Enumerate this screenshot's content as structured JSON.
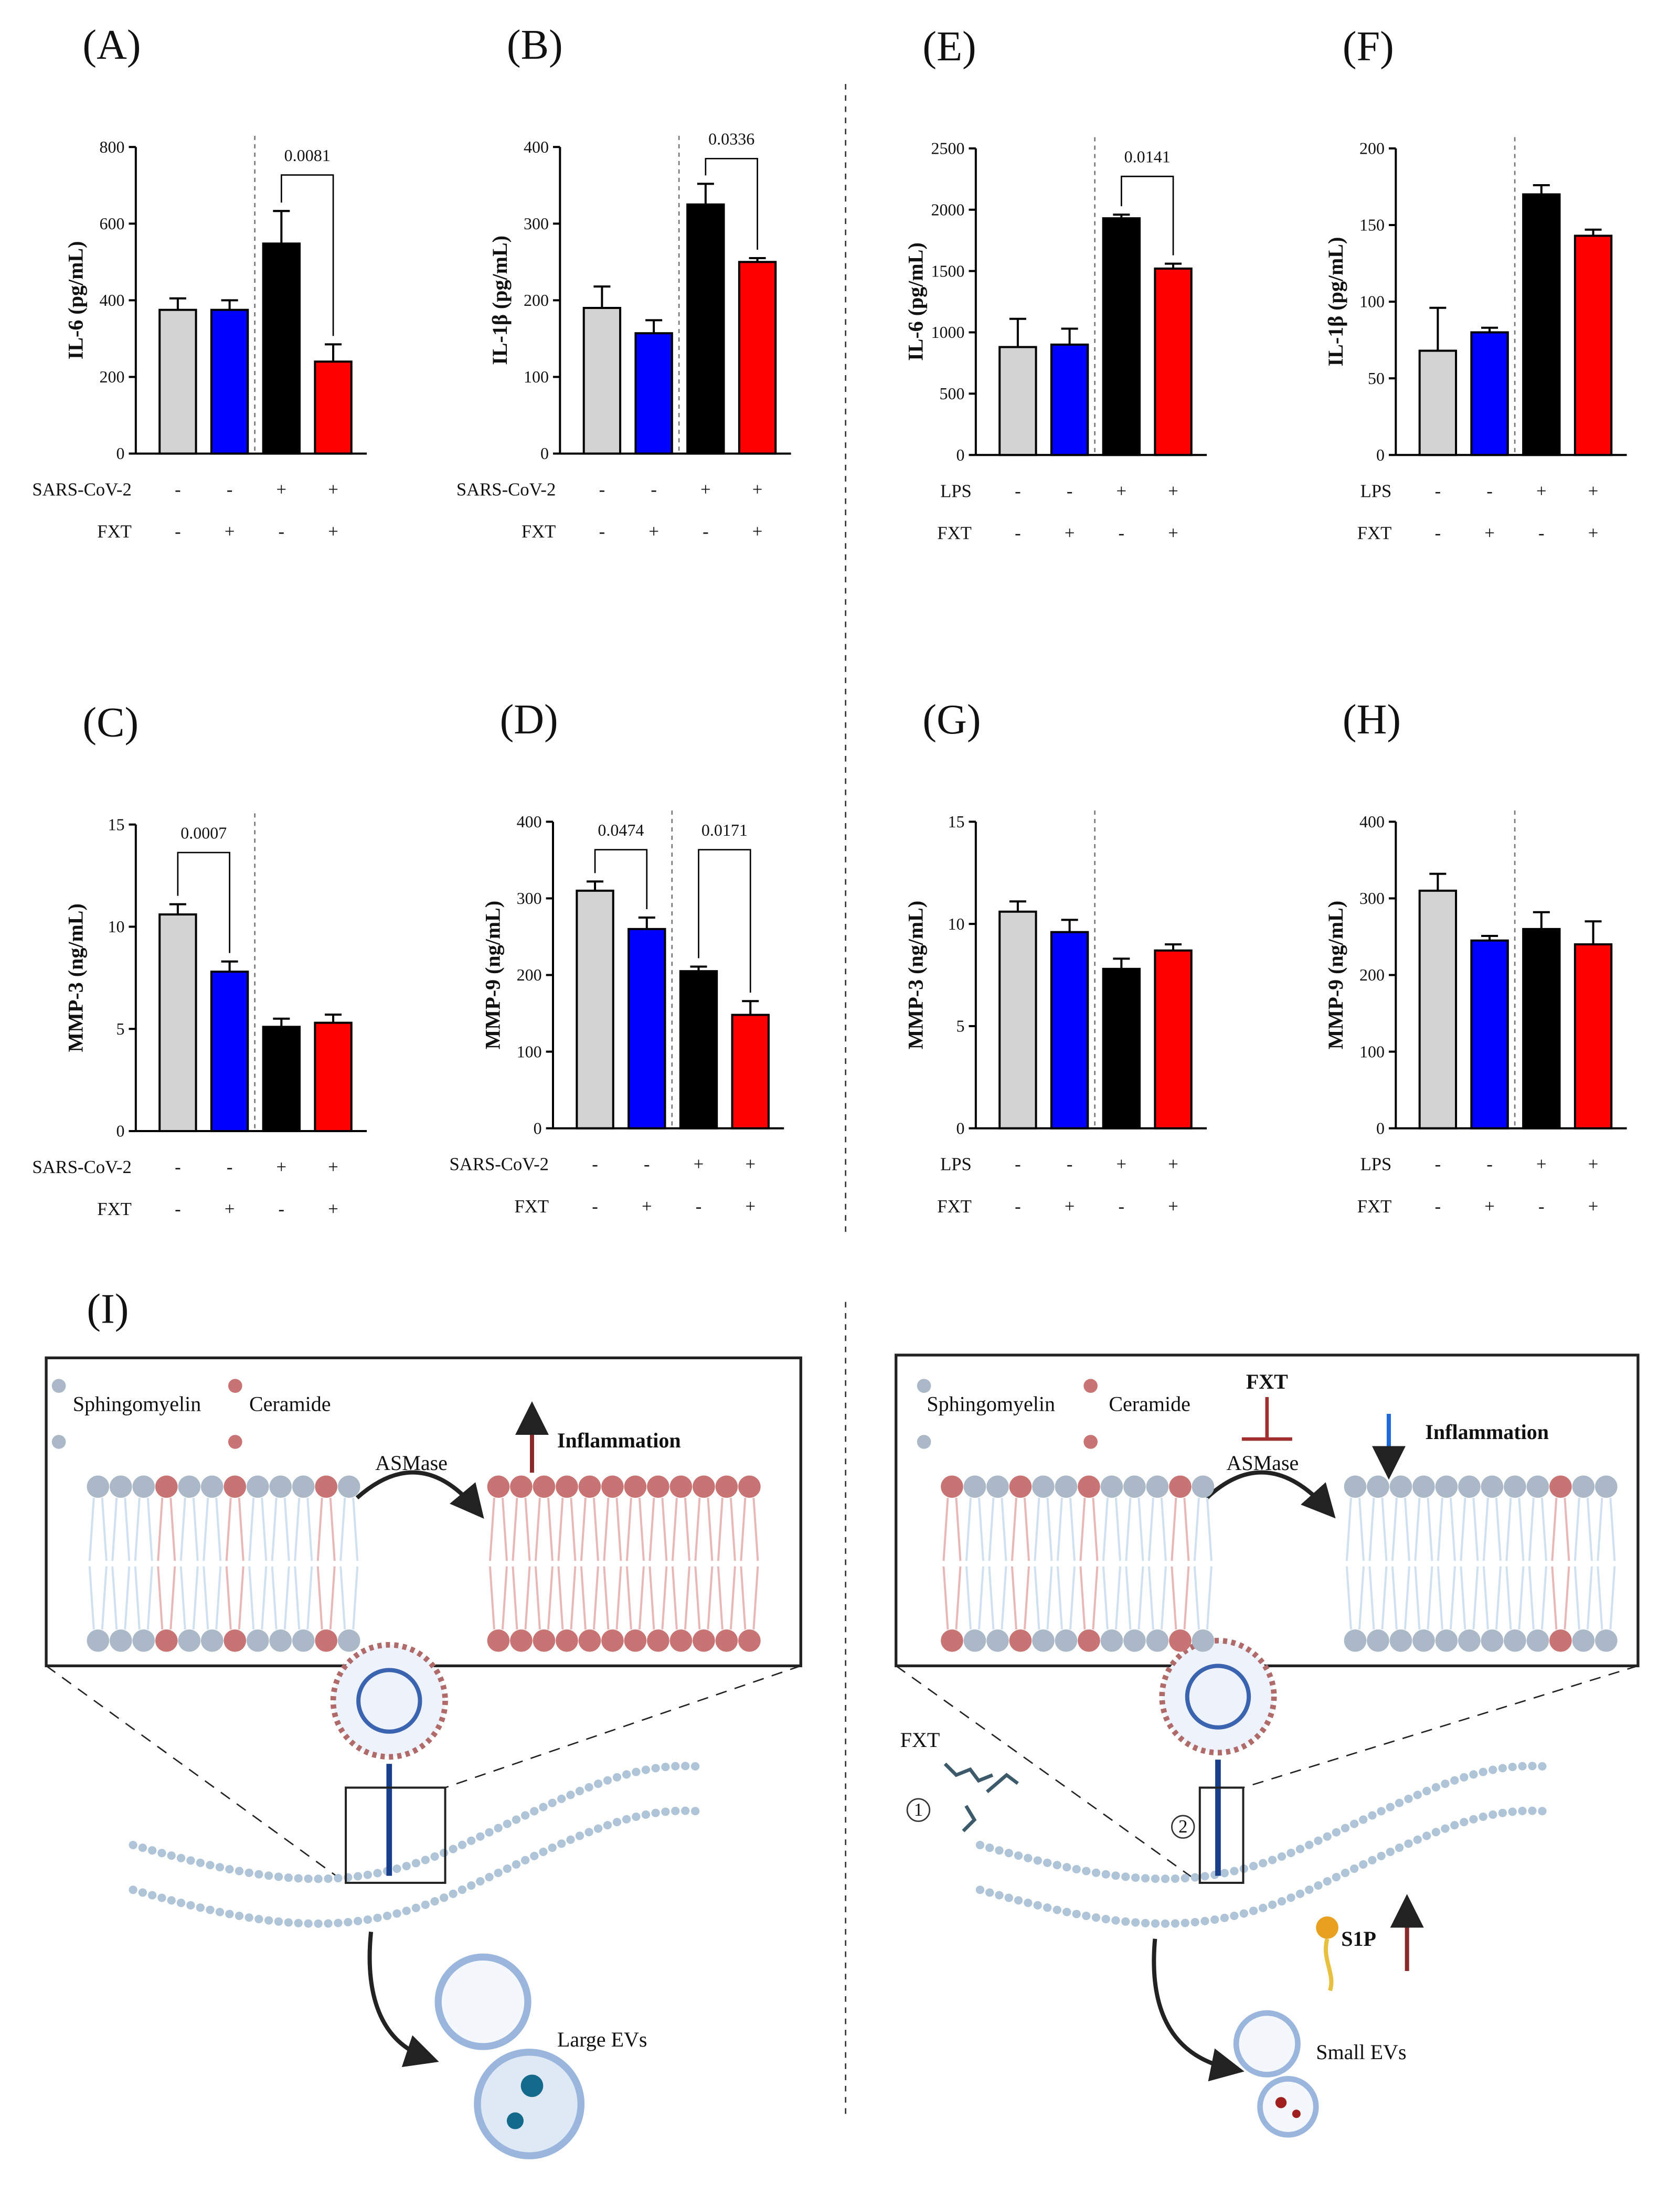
{
  "chart_data": [
    {
      "type": "bar",
      "panel": "(A)",
      "ylabel": "IL-6 (pg/mL)",
      "values": [
        375,
        375,
        548,
        240
      ],
      "errors": [
        30,
        25,
        85,
        45
      ],
      "colors": [
        "#d3d3d3",
        "#0000ff",
        "#000000",
        "#ff0000"
      ],
      "ylim": [
        0,
        800
      ],
      "yticks": [
        0,
        200,
        400,
        600,
        800
      ],
      "annotations": [
        "0.0081"
      ],
      "groups": [
        {
          "name": "SARS-CoV-2",
          "signs": [
            "-",
            "-",
            "+",
            "+"
          ]
        },
        {
          "name": "FXT",
          "signs": [
            "-",
            "+",
            "-",
            "+"
          ]
        }
      ]
    },
    {
      "type": "bar",
      "panel": "(B)",
      "ylabel": "IL-1β (pg/mL)",
      "values": [
        190,
        157,
        325,
        250
      ],
      "errors": [
        28,
        17,
        27,
        5
      ],
      "colors": [
        "#d3d3d3",
        "#0000ff",
        "#000000",
        "#ff0000"
      ],
      "ylim": [
        0,
        400
      ],
      "yticks": [
        0,
        100,
        200,
        300,
        400
      ],
      "annotations": [
        "0.0336"
      ],
      "groups": [
        {
          "name": "SARS-CoV-2",
          "signs": [
            "-",
            "-",
            "+",
            "+"
          ]
        },
        {
          "name": "FXT",
          "signs": [
            "-",
            "+",
            "-",
            "+"
          ]
        }
      ]
    },
    {
      "type": "bar",
      "panel": "(C)",
      "ylabel": "MMP-3 (ng/mL)",
      "values": [
        10.6,
        7.8,
        5.1,
        5.3
      ],
      "errors": [
        0.5,
        0.5,
        0.4,
        0.4
      ],
      "colors": [
        "#d3d3d3",
        "#0000ff",
        "#000000",
        "#ff0000"
      ],
      "ylim": [
        0,
        15
      ],
      "yticks": [
        0,
        5,
        10,
        15
      ],
      "annotations": [
        "0.0007"
      ],
      "groups": [
        {
          "name": "SARS-CoV-2",
          "signs": [
            "-",
            "-",
            "+",
            "+"
          ]
        },
        {
          "name": "FXT",
          "signs": [
            "-",
            "+",
            "-",
            "+"
          ]
        }
      ]
    },
    {
      "type": "bar",
      "panel": "(D)",
      "ylabel": "MMP-9 (ng/mL)",
      "values": [
        310,
        260,
        205,
        148
      ],
      "errors": [
        12,
        15,
        6,
        18
      ],
      "colors": [
        "#d3d3d3",
        "#0000ff",
        "#000000",
        "#ff0000"
      ],
      "ylim": [
        0,
        400
      ],
      "yticks": [
        0,
        100,
        200,
        300,
        400
      ],
      "annotations": [
        "0.0474",
        "0.0171"
      ],
      "groups": [
        {
          "name": "SARS-CoV-2",
          "signs": [
            "-",
            "-",
            "+",
            "+"
          ]
        },
        {
          "name": "FXT",
          "signs": [
            "-",
            "+",
            "-",
            "+"
          ]
        }
      ]
    },
    {
      "type": "bar",
      "panel": "(E)",
      "ylabel": "IL-6 (pg/mL)",
      "values": [
        880,
        900,
        1930,
        1520
      ],
      "errors": [
        230,
        130,
        30,
        40
      ],
      "colors": [
        "#d3d3d3",
        "#0000ff",
        "#000000",
        "#ff0000"
      ],
      "ylim": [
        0,
        2500
      ],
      "yticks": [
        0,
        500,
        1000,
        1500,
        2000,
        2500
      ],
      "annotations": [
        "0.0141"
      ],
      "groups": [
        {
          "name": "LPS",
          "signs": [
            "-",
            "-",
            "+",
            "+"
          ]
        },
        {
          "name": "FXT",
          "signs": [
            "-",
            "+",
            "-",
            "+"
          ]
        }
      ]
    },
    {
      "type": "bar",
      "panel": "(F)",
      "ylabel": "IL-1β (pg/mL)",
      "values": [
        68,
        80,
        170,
        143
      ],
      "errors": [
        28,
        3,
        6,
        4
      ],
      "colors": [
        "#d3d3d3",
        "#0000ff",
        "#000000",
        "#ff0000"
      ],
      "ylim": [
        0,
        200
      ],
      "yticks": [
        0,
        50,
        100,
        150,
        200
      ],
      "annotations": [],
      "groups": [
        {
          "name": "LPS",
          "signs": [
            "-",
            "-",
            "+",
            "+"
          ]
        },
        {
          "name": "FXT",
          "signs": [
            "-",
            "+",
            "-",
            "+"
          ]
        }
      ]
    },
    {
      "type": "bar",
      "panel": "(G)",
      "ylabel": "MMP-3 (ng/mL)",
      "values": [
        10.6,
        9.6,
        7.8,
        8.7
      ],
      "errors": [
        0.5,
        0.6,
        0.5,
        0.3
      ],
      "colors": [
        "#d3d3d3",
        "#0000ff",
        "#000000",
        "#ff0000"
      ],
      "ylim": [
        0,
        15
      ],
      "yticks": [
        0,
        5,
        10,
        15
      ],
      "annotations": [],
      "groups": [
        {
          "name": "LPS",
          "signs": [
            "-",
            "-",
            "+",
            "+"
          ]
        },
        {
          "name": "FXT",
          "signs": [
            "-",
            "+",
            "-",
            "+"
          ]
        }
      ]
    },
    {
      "type": "bar",
      "panel": "(H)",
      "ylabel": "MMP-9 (ng/mL)",
      "values": [
        310,
        245,
        260,
        240
      ],
      "errors": [
        22,
        6,
        22,
        30
      ],
      "colors": [
        "#d3d3d3",
        "#0000ff",
        "#000000",
        "#ff0000"
      ],
      "ylim": [
        0,
        400
      ],
      "yticks": [
        0,
        100,
        200,
        300,
        400
      ],
      "annotations": [],
      "groups": [
        {
          "name": "LPS",
          "signs": [
            "-",
            "-",
            "+",
            "+"
          ]
        },
        {
          "name": "FXT",
          "signs": [
            "-",
            "+",
            "-",
            "+"
          ]
        }
      ]
    }
  ],
  "diagram": {
    "panel": "(I)",
    "left": {
      "legend": [
        "Sphingomyelin",
        "Ceramide"
      ],
      "enzyme": "ASMase",
      "effect": "Inflammation",
      "vesicles": "Large EVs"
    },
    "right": {
      "legend": [
        "Sphingomyelin",
        "Ceramide"
      ],
      "inhibitor": "FXT",
      "enzyme": "ASMase",
      "effect": "Inflammation",
      "drug": "FXT",
      "steps": [
        "1",
        "2"
      ],
      "lipid": "S1P",
      "vesicles": "Small EVs"
    }
  }
}
